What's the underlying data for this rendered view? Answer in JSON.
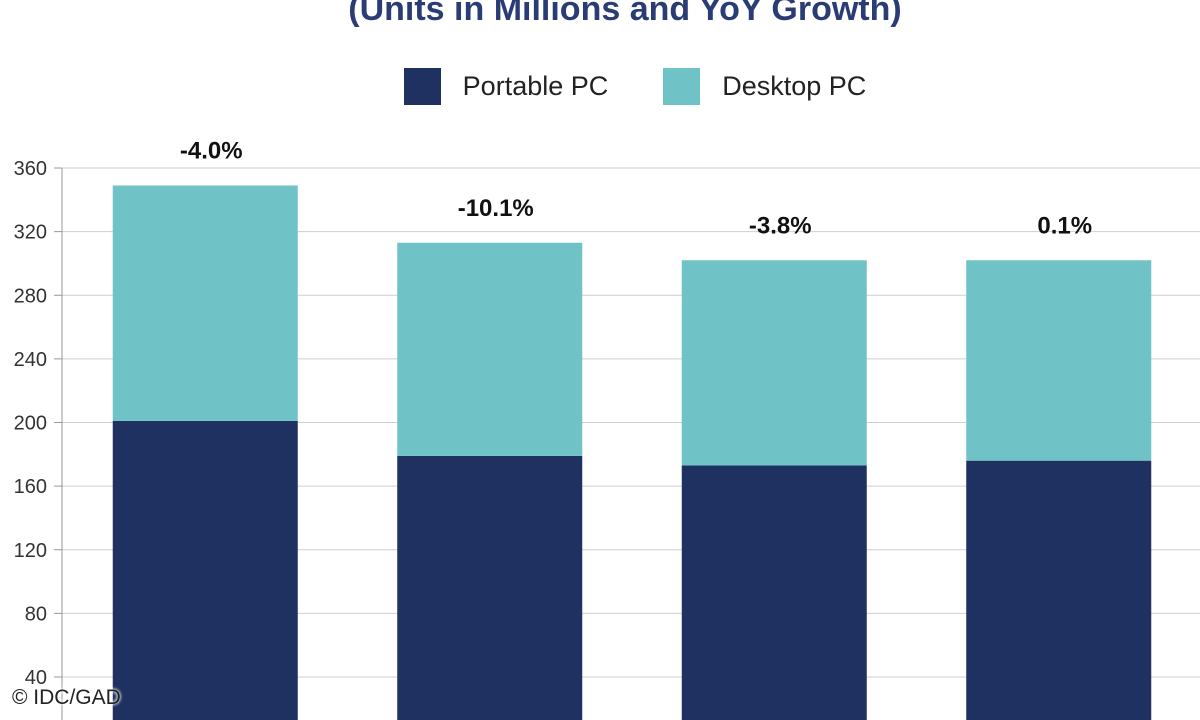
{
  "chart_data": {
    "type": "bar",
    "stacked": true,
    "title": "(Units in Millions and YoY Growth)",
    "categories": [
      "",
      "",
      "",
      ""
    ],
    "series": [
      {
        "name": "Portable PC",
        "color": "#1f3160",
        "values": [
          201,
          179,
          173,
          176
        ]
      },
      {
        "name": "Desktop PC",
        "color": "#6fc2c5",
        "values": [
          148,
          134,
          129,
          126
        ]
      }
    ],
    "growth_labels": [
      "-4.0%",
      "-10.1%",
      "-3.8%",
      "0.1%"
    ],
    "yticks": [
      40,
      80,
      120,
      160,
      200,
      240,
      280,
      320,
      360
    ],
    "ylim": [
      20,
      360
    ],
    "grid": true,
    "legend_position": "top"
  },
  "credit": "© IDC/GAD"
}
